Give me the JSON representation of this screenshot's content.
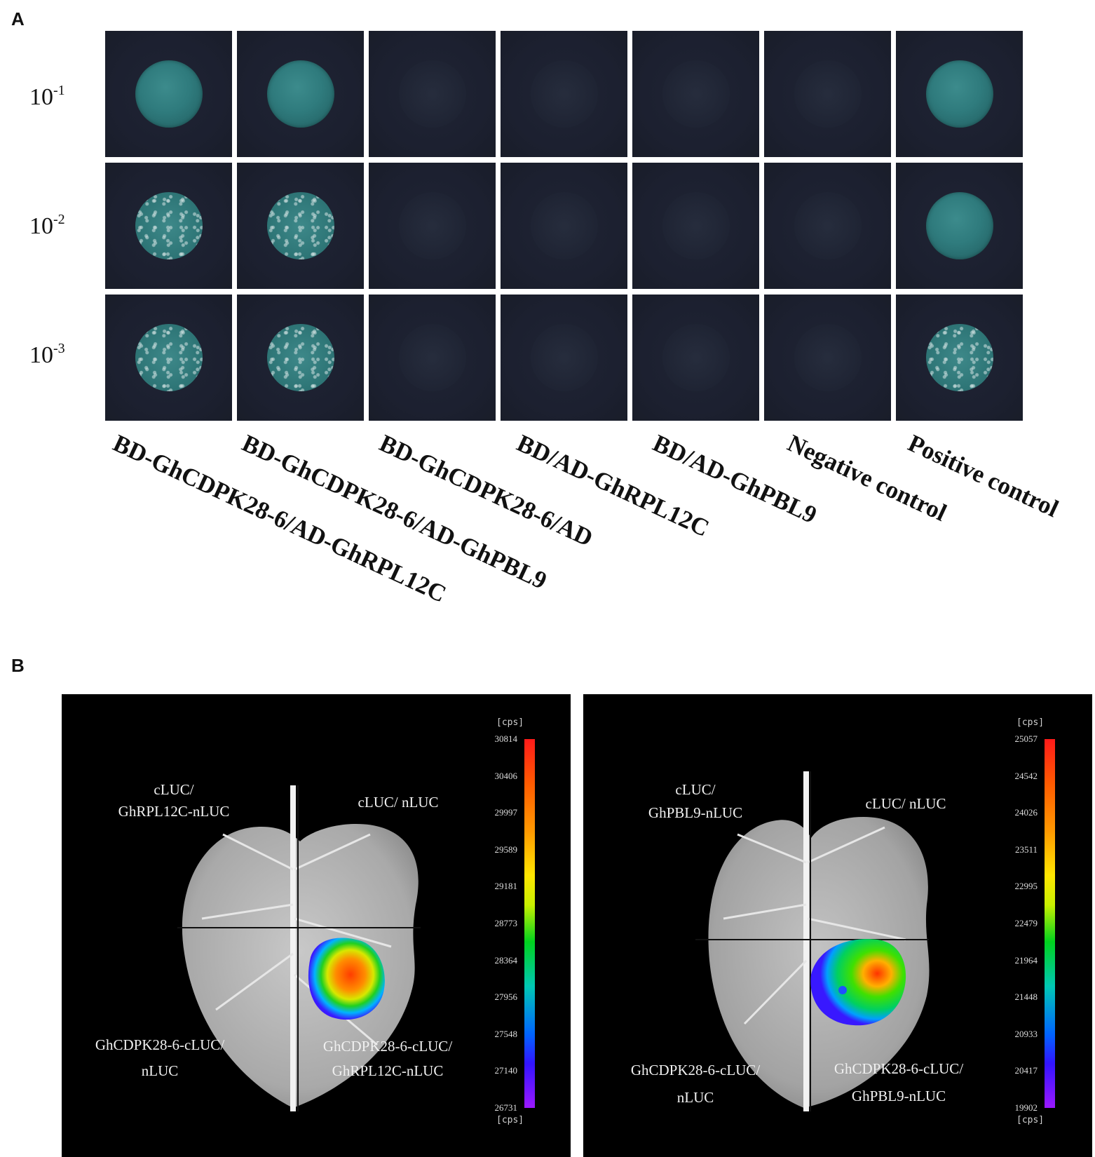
{
  "panel_a": {
    "letter": "A",
    "dilutions": [
      {
        "base": "10",
        "exp": "-1"
      },
      {
        "base": "10",
        "exp": "-2"
      },
      {
        "base": "10",
        "exp": "-3"
      }
    ],
    "columns": [
      "BD-GhCDPK28-6/AD-GhRPL12C",
      "BD-GhCDPK28-6/AD-GhPBL9",
      "BD-GhCDPK28-6/AD",
      "BD/AD-GhRPL12C",
      "BD/AD-GhPBL9",
      "Negative control",
      "Positive control"
    ]
  },
  "panel_b": {
    "letter": "B",
    "left": {
      "top_left": [
        "cLUC/",
        "GhRPL12C-nLUC"
      ],
      "top_right": [
        "cLUC/ nLUC"
      ],
      "bottom_left": [
        "GhCDPK28-6-cLUC/",
        "nLUC"
      ],
      "bottom_right": [
        "GhCDPK28-6-cLUC/",
        "GhRPL12C-nLUC"
      ],
      "unit": "[cps]",
      "ticks": [
        "30814",
        "30406",
        "29997",
        "29589",
        "29181",
        "28773",
        "28364",
        "27956",
        "27548",
        "27140",
        "26731"
      ]
    },
    "right": {
      "top_left": [
        "cLUC/",
        "GhPBL9-nLUC"
      ],
      "top_right": [
        "cLUC/ nLUC"
      ],
      "bottom_left": [
        "GhCDPK28-6-cLUC/",
        "nLUC"
      ],
      "bottom_right": [
        "GhCDPK28-6-cLUC/",
        "GhPBL9-nLUC"
      ],
      "unit": "[cps]",
      "ticks": [
        "25057",
        "24542",
        "24026",
        "23511",
        "22995",
        "22479",
        "21964",
        "21448",
        "20933",
        "20417",
        "19902"
      ]
    }
  }
}
